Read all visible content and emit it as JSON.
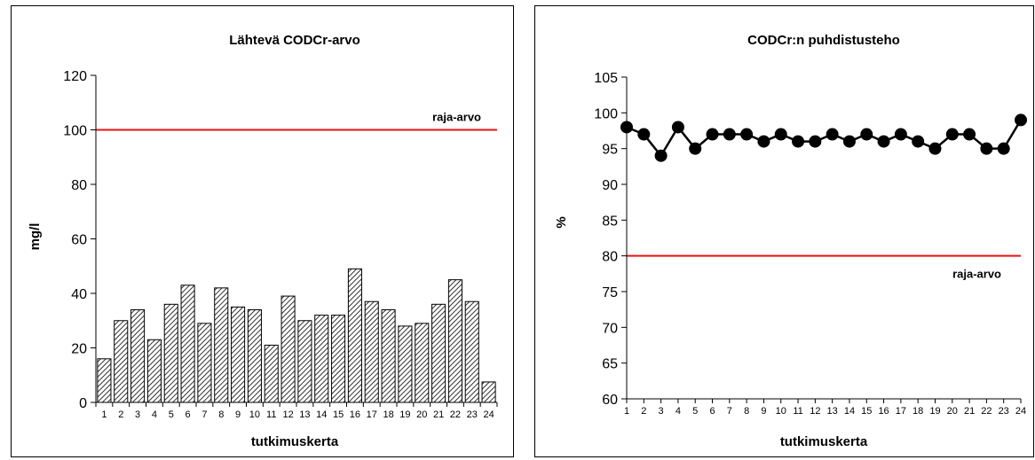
{
  "chart_data": [
    {
      "type": "bar",
      "title": "Lähtevä CODCr-arvo",
      "xlabel": "tutkimuskerta",
      "ylabel": "mg/l",
      "ylim": [
        0,
        120
      ],
      "yticks": [
        "0",
        "20",
        "40",
        "60",
        "80",
        "100",
        "120"
      ],
      "categories": [
        "1",
        "2",
        "3",
        "4",
        "5",
        "6",
        "7",
        "8",
        "9",
        "10",
        "11",
        "12",
        "13",
        "14",
        "15",
        "16",
        "17",
        "18",
        "19",
        "20",
        "21",
        "22",
        "23",
        "24"
      ],
      "values": [
        16,
        30,
        34,
        23,
        36,
        43,
        29,
        42,
        35,
        34,
        21,
        39,
        30,
        32,
        32,
        49,
        37,
        34,
        28,
        29,
        36,
        45,
        37,
        7.5
      ],
      "reference_line": {
        "value": 100,
        "label": "raja-arvo",
        "color": "#ee1111"
      },
      "bar_pattern": "hatched",
      "grid": false
    },
    {
      "type": "line",
      "title": "CODCr:n puhdistusteho",
      "xlabel": "tutkimuskerta",
      "ylabel": "%",
      "ylim": [
        60,
        105
      ],
      "yticks": [
        "60",
        "65",
        "70",
        "75",
        "80",
        "85",
        "90",
        "95",
        "100",
        "105"
      ],
      "categories": [
        "1",
        "2",
        "3",
        "4",
        "5",
        "6",
        "7",
        "8",
        "9",
        "10",
        "11",
        "12",
        "13",
        "14",
        "15",
        "16",
        "17",
        "18",
        "19",
        "20",
        "21",
        "22",
        "23",
        "24"
      ],
      "values": [
        98,
        97,
        94,
        98,
        95,
        97,
        97,
        97,
        96,
        97,
        96,
        96,
        97,
        96,
        97,
        96,
        97,
        96,
        95,
        97,
        97,
        95,
        95,
        99
      ],
      "reference_line": {
        "value": 80,
        "label": "raja-arvo",
        "color": "#ee1111"
      },
      "marker": "filled-circle",
      "grid": false
    }
  ]
}
